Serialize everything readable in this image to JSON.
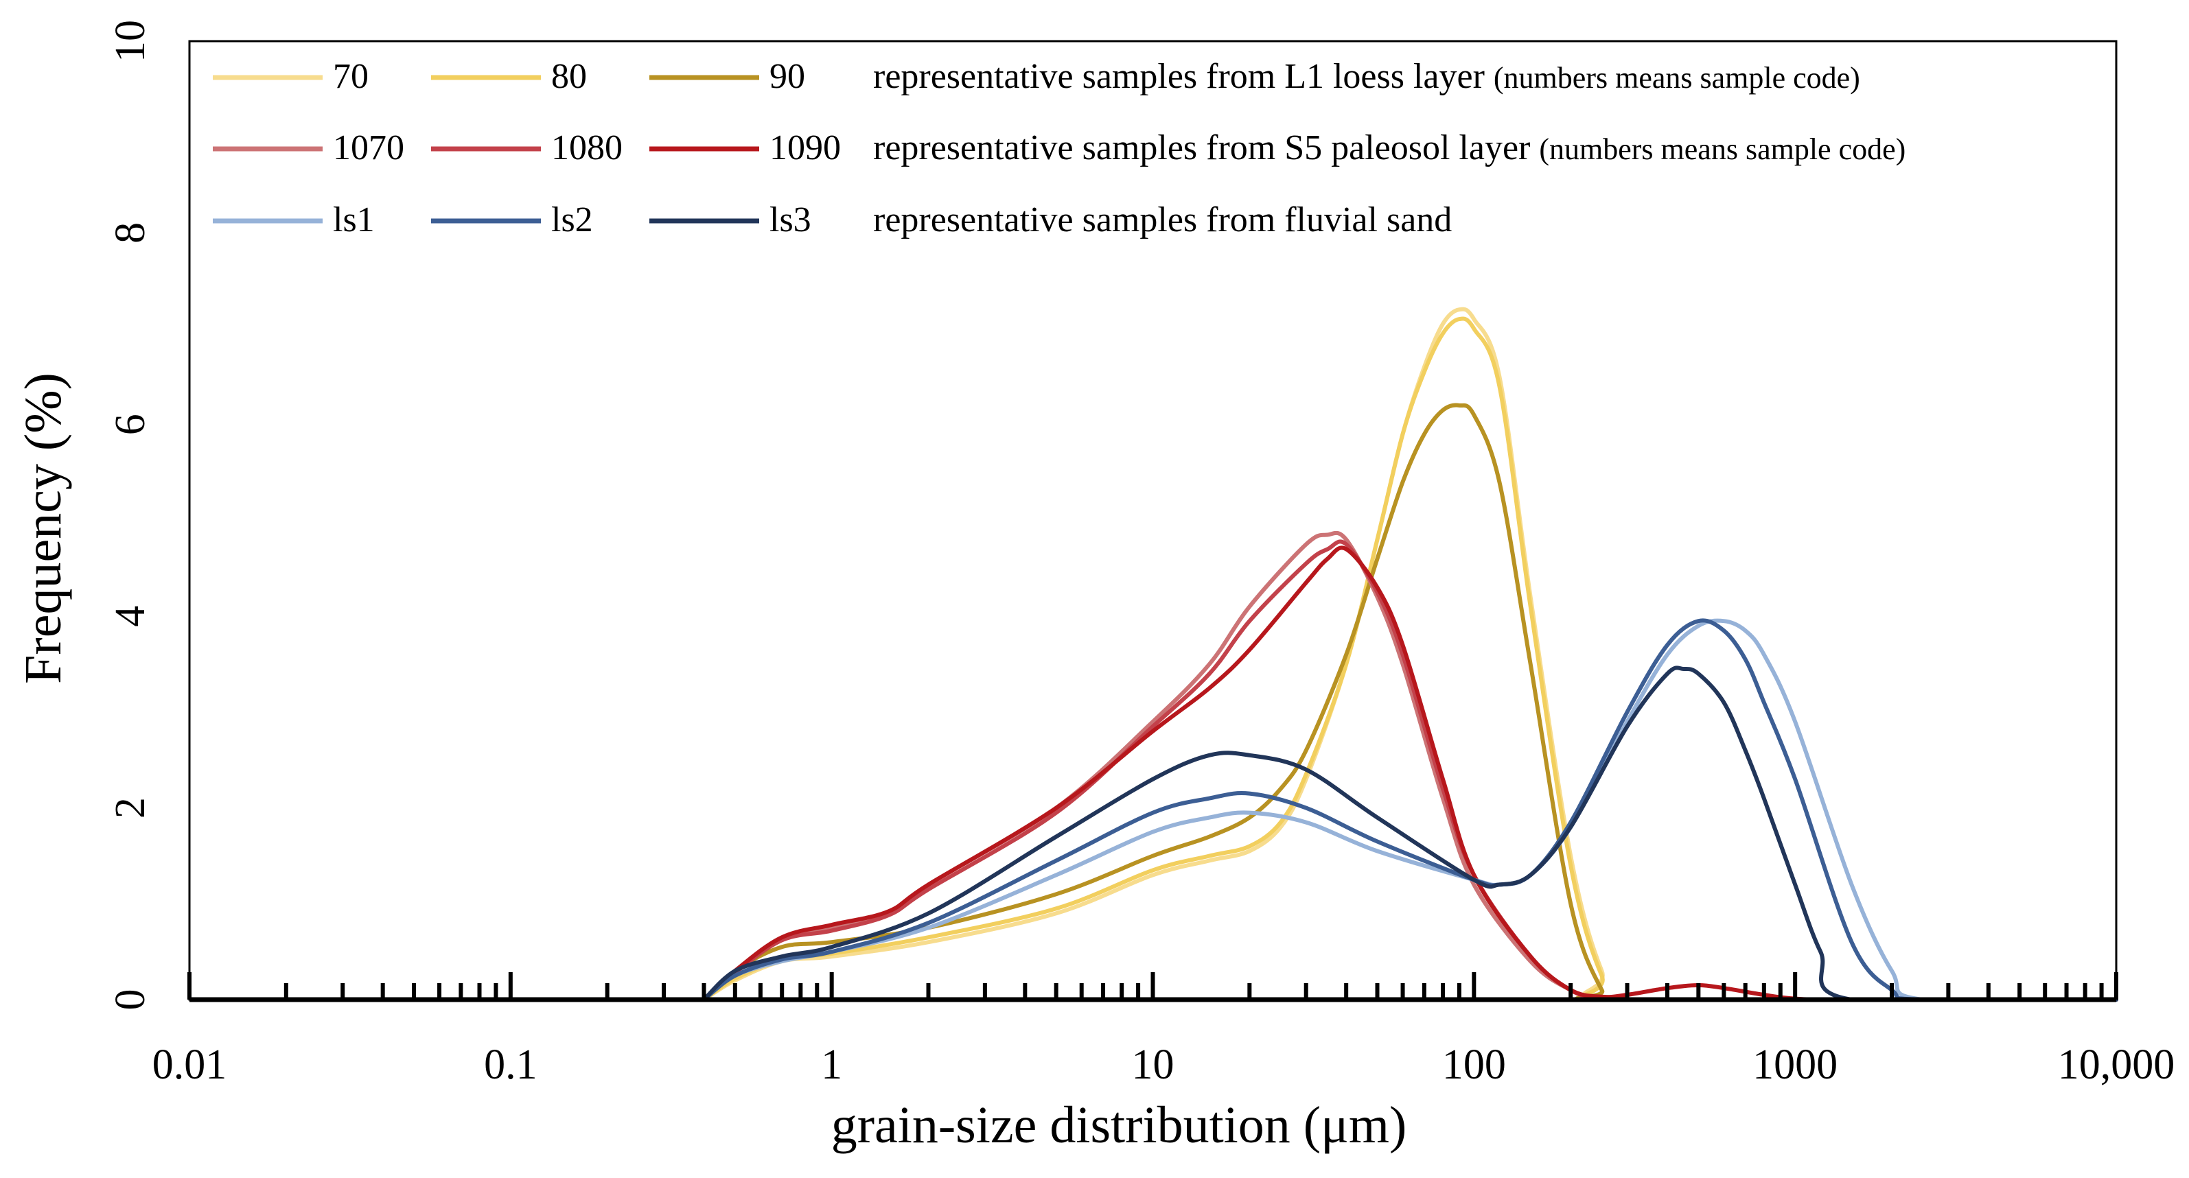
{
  "chart_data": {
    "type": "line",
    "xlabel": "grain-size distribution (μm)",
    "ylabel": "Frequency (%)",
    "xscale": "log",
    "xlim": [
      0.01,
      10000
    ],
    "ylim": [
      0,
      10
    ],
    "x_tick_labels": [
      "0.01",
      "0.1",
      "1",
      "10",
      "100",
      "1000",
      "10,000"
    ],
    "x_tick_values": [
      0.01,
      0.1,
      1,
      10,
      100,
      1000,
      10000
    ],
    "y_tick_labels": [
      "0",
      "2",
      "4",
      "6",
      "8",
      "10"
    ],
    "y_tick_values": [
      0,
      2,
      4,
      6,
      8,
      10
    ],
    "grid": false,
    "legend_position": "top-left",
    "legend_groups": [
      {
        "text": "representative samples from L1 loess layer",
        "note": "(numbers means sample code)",
        "series": [
          "70",
          "80",
          "90"
        ]
      },
      {
        "text": "representative samples from S5 paleosol layer",
        "note": "(numbers means sample code)",
        "series": [
          "1070",
          "1080",
          "1090"
        ]
      },
      {
        "text": "representative samples from fluvial sand",
        "note": "",
        "series": [
          "ls1",
          "ls2",
          "ls3"
        ]
      }
    ],
    "series": [
      {
        "name": "70",
        "color": "#f7dc8e",
        "x": [
          0.4,
          0.5,
          0.7,
          1,
          2,
          5,
          10,
          15,
          20,
          25,
          30,
          40,
          50,
          60,
          70,
          80,
          90,
          100,
          120,
          150,
          200,
          250,
          300,
          10000
        ],
        "y": [
          0,
          0.2,
          0.4,
          0.45,
          0.6,
          0.9,
          1.3,
          1.45,
          1.55,
          1.8,
          2.3,
          3.5,
          4.8,
          5.9,
          6.6,
          7.05,
          7.2,
          7.1,
          6.5,
          4.2,
          1.5,
          0.3,
          0,
          0
        ]
      },
      {
        "name": "80",
        "color": "#f2cf5e",
        "x": [
          0.4,
          0.5,
          0.7,
          1,
          2,
          5,
          10,
          15,
          20,
          25,
          30,
          40,
          50,
          60,
          70,
          80,
          90,
          100,
          120,
          150,
          200,
          250,
          300,
          10000
        ],
        "y": [
          0,
          0.22,
          0.42,
          0.48,
          0.65,
          0.95,
          1.35,
          1.5,
          1.6,
          1.85,
          2.35,
          3.5,
          4.8,
          5.9,
          6.55,
          6.95,
          7.1,
          7.0,
          6.4,
          4.1,
          1.4,
          0.25,
          0,
          0
        ]
      },
      {
        "name": "90",
        "color": "#b89222",
        "x": [
          0.4,
          0.5,
          0.7,
          1,
          2,
          5,
          10,
          15,
          20,
          25,
          30,
          40,
          50,
          60,
          70,
          80,
          90,
          100,
          120,
          150,
          200,
          250,
          280,
          10000
        ],
        "y": [
          0,
          0.3,
          0.55,
          0.6,
          0.75,
          1.1,
          1.5,
          1.7,
          1.9,
          2.2,
          2.6,
          3.6,
          4.6,
          5.4,
          5.9,
          6.15,
          6.2,
          6.1,
          5.4,
          3.5,
          1.0,
          0.1,
          0,
          0
        ]
      },
      {
        "name": "1070",
        "color": "#cc7375",
        "x": [
          0.4,
          0.5,
          0.7,
          1,
          1.5,
          2,
          5,
          10,
          15,
          20,
          30,
          35,
          40,
          50,
          60,
          80,
          100,
          150,
          200,
          250,
          300,
          400,
          500,
          600,
          800,
          1000,
          10000
        ],
        "y": [
          0,
          0.3,
          0.65,
          0.75,
          0.9,
          1.2,
          2.0,
          2.9,
          3.5,
          4.1,
          4.75,
          4.85,
          4.8,
          4.2,
          3.5,
          2.1,
          1.2,
          0.4,
          0.1,
          0,
          0,
          0,
          0,
          0,
          0,
          0,
          0
        ]
      },
      {
        "name": "1080",
        "color": "#c3414a",
        "x": [
          0.4,
          0.5,
          0.7,
          1,
          1.5,
          2,
          5,
          10,
          15,
          20,
          30,
          35,
          40,
          50,
          60,
          80,
          100,
          150,
          200,
          250,
          300,
          400,
          500,
          600,
          800,
          1000,
          10000
        ],
        "y": [
          0,
          0.28,
          0.62,
          0.72,
          0.88,
          1.15,
          1.95,
          2.85,
          3.4,
          3.95,
          4.55,
          4.7,
          4.75,
          4.25,
          3.6,
          2.2,
          1.3,
          0.45,
          0.1,
          0,
          0,
          0,
          0,
          0,
          0,
          0,
          0
        ]
      },
      {
        "name": "1090",
        "color": "#b7171c",
        "x": [
          0.4,
          0.5,
          0.7,
          1,
          1.5,
          2,
          5,
          10,
          15,
          20,
          30,
          35,
          40,
          50,
          60,
          80,
          100,
          150,
          200,
          250,
          300,
          400,
          500,
          600,
          800,
          1000,
          1500,
          10000
        ],
        "y": [
          0,
          0.3,
          0.65,
          0.78,
          0.92,
          1.2,
          2.0,
          2.8,
          3.25,
          3.65,
          4.35,
          4.6,
          4.7,
          4.3,
          3.7,
          2.3,
          1.3,
          0.45,
          0.1,
          0.03,
          0.05,
          0.12,
          0.15,
          0.12,
          0.05,
          0.01,
          0,
          0
        ]
      },
      {
        "name": "ls1",
        "color": "#96b2d8",
        "x": [
          0.4,
          0.5,
          0.7,
          1,
          2,
          5,
          10,
          15,
          20,
          30,
          50,
          100,
          120,
          150,
          200,
          300,
          400,
          500,
          600,
          700,
          800,
          1000,
          1500,
          2000,
          2500,
          10000
        ],
        "y": [
          0,
          0.25,
          0.4,
          0.5,
          0.75,
          1.3,
          1.75,
          1.9,
          1.95,
          1.85,
          1.55,
          1.25,
          1.2,
          1.3,
          1.8,
          2.9,
          3.6,
          3.9,
          3.95,
          3.85,
          3.6,
          2.9,
          1.2,
          0.3,
          0,
          0
        ]
      },
      {
        "name": "ls2",
        "color": "#3c5e94",
        "x": [
          0.4,
          0.5,
          0.7,
          1,
          2,
          5,
          10,
          15,
          20,
          30,
          50,
          100,
          120,
          150,
          200,
          300,
          400,
          500,
          600,
          700,
          800,
          1000,
          1500,
          2000,
          2500,
          10000
        ],
        "y": [
          0,
          0.25,
          0.42,
          0.5,
          0.8,
          1.45,
          1.95,
          2.1,
          2.15,
          2.0,
          1.65,
          1.25,
          1.2,
          1.3,
          1.85,
          3.0,
          3.7,
          3.95,
          3.85,
          3.55,
          3.1,
          2.3,
          0.6,
          0.1,
          0,
          0
        ]
      },
      {
        "name": "ls3",
        "color": "#213559",
        "x": [
          0.4,
          0.5,
          0.7,
          1,
          2,
          5,
          10,
          15,
          20,
          30,
          50,
          100,
          120,
          150,
          200,
          300,
          400,
          450,
          500,
          600,
          700,
          800,
          1000,
          1200,
          1500,
          10000
        ],
        "y": [
          0,
          0.3,
          0.45,
          0.55,
          0.9,
          1.7,
          2.3,
          2.55,
          2.55,
          2.4,
          1.9,
          1.25,
          1.2,
          1.3,
          1.8,
          2.85,
          3.4,
          3.45,
          3.4,
          3.1,
          2.6,
          2.1,
          1.2,
          0.5,
          0,
          0
        ]
      }
    ]
  }
}
